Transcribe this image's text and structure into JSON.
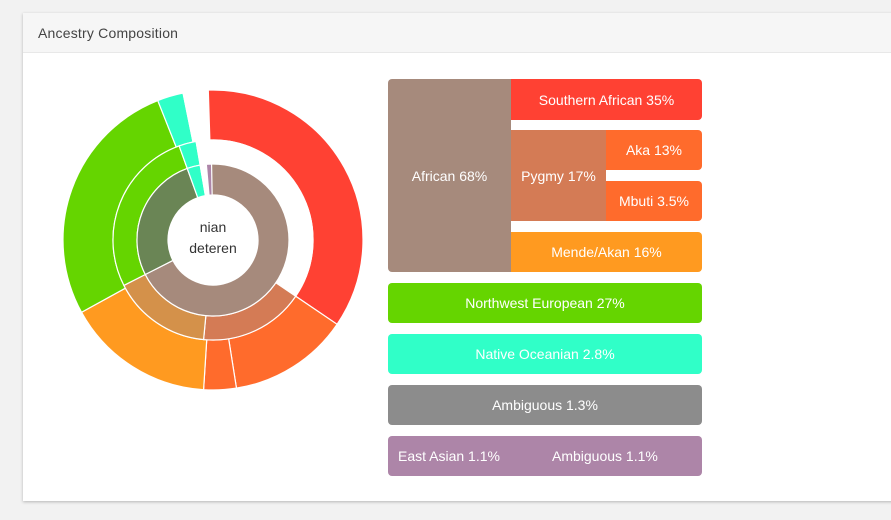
{
  "panel": {
    "title": "Ancestry Composition"
  },
  "center_label": {
    "line1": "nian",
    "line2": "deteren"
  },
  "colors": {
    "african": "#a68a7c",
    "southern_african": "#ff4133",
    "pygmy": "#d47b55",
    "aka": "#ff6b2c",
    "mbuti": "#ff6b2c",
    "mende_akan": "#ff9a20",
    "northwest_european": "#65d500",
    "native_oceanian": "#30ffc8",
    "ambiguous": "#8c8c8c",
    "east_asian_ambiguous": "#ad85a8"
  },
  "legend": {
    "african": "African 68%",
    "southern_african": "Southern African 35%",
    "pygmy": "Pygmy 17%",
    "aka": "Aka 13%",
    "mbuti": "Mbuti 3.5%",
    "mende_akan": "Mende/Akan 16%",
    "northwest_european": "Northwest European 27%",
    "native_oceanian": "Native Oceanian 2.8%",
    "ambiguous": "Ambiguous 1.3%",
    "east_asian": "East Asian 1.1%",
    "east_asian_ambiguous": "Ambiguous 1.1%"
  },
  "chart_data": {
    "type": "sunburst",
    "unit": "%",
    "segments": [
      {
        "name": "Southern African",
        "value": 35,
        "ring": "outer",
        "color": "#ff4133"
      },
      {
        "name": "Aka",
        "value": 13,
        "ring": "outer",
        "color": "#ff6b2c"
      },
      {
        "name": "Mbuti",
        "value": 3.5,
        "ring": "outer",
        "color": "#ff6b2c"
      },
      {
        "name": "Mende/Akan",
        "value": 16,
        "ring": "outer",
        "color": "#ff9a20"
      },
      {
        "name": "Northwest European",
        "value": 27,
        "ring": "outer",
        "color": "#65d500"
      },
      {
        "name": "Native Oceanian",
        "value": 2.8,
        "ring": "outer",
        "color": "#30ffc8"
      },
      {
        "name": "Ambiguous",
        "value": 1.3,
        "ring": "outer",
        "color": "#ffffff"
      },
      {
        "name": "Ambiguous",
        "value": 1.1,
        "ring": "outer",
        "color": "#ffffff"
      },
      {
        "name": "African",
        "value": 35,
        "ring": "middle",
        "color": "#ffffff"
      },
      {
        "name": "Pygmy",
        "value": 17,
        "ring": "middle",
        "color": "#d47b55"
      },
      {
        "name": "Mende/Akan",
        "value": 16,
        "ring": "middle",
        "color": "#d4914a"
      },
      {
        "name": "Northwest European",
        "value": 27,
        "ring": "middle",
        "color": "#65d500"
      },
      {
        "name": "Native Oceanian",
        "value": 2.8,
        "ring": "middle",
        "color": "#30ffc8"
      },
      {
        "name": "Ambiguous",
        "value": 1.3,
        "ring": "middle",
        "color": "#ffffff"
      },
      {
        "name": "Ambiguous",
        "value": 1.1,
        "ring": "middle",
        "color": "#ffffff"
      },
      {
        "name": "African",
        "value": 68,
        "ring": "inner",
        "color": "#a68a7c"
      },
      {
        "name": "Northwest European",
        "value": 27,
        "ring": "inner",
        "color": "#6a8555"
      },
      {
        "name": "Native Oceanian",
        "value": 2.8,
        "ring": "inner",
        "color": "#30ffc8"
      },
      {
        "name": "Ambiguous",
        "value": 1.3,
        "ring": "inner",
        "color": "#ffffff"
      },
      {
        "name": "East Asian",
        "value": 1.1,
        "ring": "inner",
        "color": "#ad85a8"
      }
    ]
  }
}
